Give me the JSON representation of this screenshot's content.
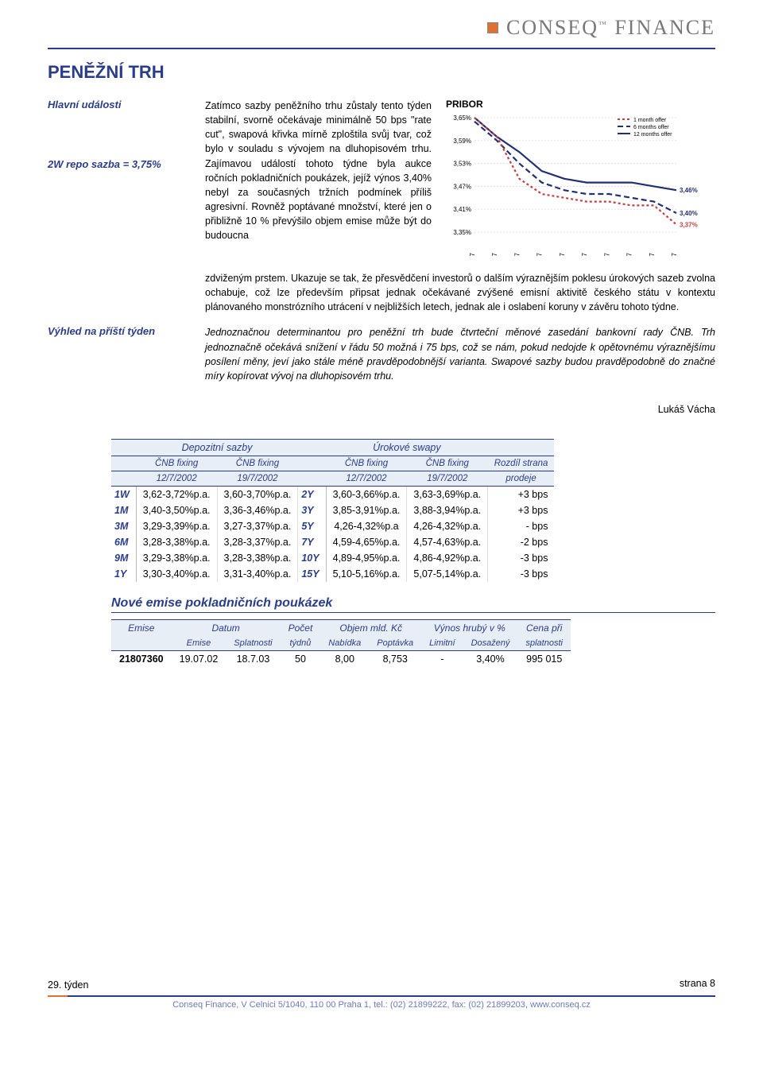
{
  "header": {
    "logo_text_1": "CONSEQ",
    "logo_tm": "™",
    "logo_text_2": "FINANCE"
  },
  "title": "PENĚŽNÍ TRH",
  "left": {
    "events_label": "Hlavní události",
    "repo_label": "2W repo sazba = 3,75%",
    "outlook_label": "Výhled na příští týden"
  },
  "paragraphs": {
    "p1": "Zatímco sazby peněžního trhu zůstaly tento týden stabilní, svorně očekávaje minimálně 50 bps \"rate cut\", swapová křivka mírně zploštila svůj tvar, což bylo v souladu s vývojem na dluhopisovém trhu. Zajímavou událostí tohoto týdne byla aukce ročních pokladničních poukázek, jejíž výnos 3,40% nebyl za současných tržních podmínek příliš agresivní. Rovněž poptávané množství, které jen o přibližně 10 % převýšilo objem emise může být do budoucna",
    "p2": "zdviženým prstem. Ukazuje se tak, že přesvědčení investorů o dalším výraznějším poklesu úrokových sazeb zvolna ochabuje, což lze především připsat jednak očekávané zvýšené emisní aktivitě českého státu v kontextu plánovaného monstrózního utrácení v nejbližších letech, jednak ale i oslabení koruny v závěru tohoto týdne.",
    "outlook": "Jednoznačnou determinantou pro peněžní trh bude čtvrteční měnové zasedání bankovní rady ČNB. Trh jednoznačně očekává snížení v řádu 50 možná i 75 bps, což se nám, pokud nedojde k opětovnému výraznějšímu posílení měny, jeví jako stále méně pravděpodobnější varianta. Swapové sazby budou pravděpodobně do značné míry kopírovat vývoj na dluhopisovém trhu.",
    "author": "Lukáš Vácha"
  },
  "chart": {
    "title": "PRIBOR",
    "type": "line",
    "x_labels": [
      "8.7",
      "9.7",
      "10.7",
      "11.7",
      "12.7",
      "15.7",
      "16.7",
      "17.7",
      "18.7",
      "19.7"
    ],
    "y_labels": [
      "3,35%",
      "3,41%",
      "3,47%",
      "3,53%",
      "3,59%",
      "3,65%"
    ],
    "ylim": [
      3.35,
      3.65
    ],
    "grid_color": "#d0d0d0",
    "background_color": "#ffffff",
    "legend": [
      {
        "label": "1 month offer",
        "color": "#c04040",
        "style": "dash-short"
      },
      {
        "label": "6 months offer",
        "color": "#203070",
        "style": "dash-long"
      },
      {
        "label": "12 months offer",
        "color": "#203070",
        "style": "solid"
      }
    ],
    "series": {
      "m1": [
        3.65,
        3.6,
        3.49,
        3.45,
        3.44,
        3.43,
        3.43,
        3.42,
        3.42,
        3.37
      ],
      "m6": [
        3.64,
        3.59,
        3.53,
        3.48,
        3.46,
        3.45,
        3.45,
        3.44,
        3.43,
        3.4
      ],
      "m12": [
        3.65,
        3.6,
        3.56,
        3.51,
        3.49,
        3.48,
        3.48,
        3.48,
        3.47,
        3.46
      ]
    },
    "end_labels": {
      "m1": "3,37%",
      "m6": "3,40%",
      "m12": "3,46%"
    },
    "colors": {
      "m1": "#c04040",
      "m6": "#203070",
      "m12": "#203070"
    },
    "line_width": 2.2
  },
  "rates_table": {
    "section1": "Depozitní sazby",
    "section2": "Úrokové swapy",
    "col_headers": [
      "ČNB fixing",
      "ČNB fixing",
      "",
      "ČNB fixing",
      "ČNB fixing",
      "Rozdíl strana"
    ],
    "col_dates": [
      "12/7/2002",
      "19/7/2002",
      "",
      "12/7/2002",
      "19/7/2002",
      "prodeje"
    ],
    "row_labels_left": [
      "1W",
      "1M",
      "3M",
      "6M",
      "9M",
      "1Y"
    ],
    "row_labels_right": [
      "2Y",
      "3Y",
      "5Y",
      "7Y",
      "10Y",
      "15Y"
    ],
    "rows": [
      [
        "3,62-3,72%p.a.",
        "3,60-3,70%p.a.",
        "3,60-3,66%p.a.",
        "3,63-3,69%p.a.",
        "+3 bps"
      ],
      [
        "3,40-3,50%p.a.",
        "3,36-3,46%p.a.",
        "3,85-3,91%p.a.",
        "3,88-3,94%p.a.",
        "+3 bps"
      ],
      [
        "3,29-3,39%p.a.",
        "3,27-3,37%p.a.",
        "4,26-4,32%p.a",
        "4,26-4,32%p.a.",
        "- bps"
      ],
      [
        "3,28-3,38%p.a.",
        "3,28-3,37%p.a.",
        "4,59-4,65%p.a.",
        "4,57-4,63%p.a.",
        "-2 bps"
      ],
      [
        "3,29-3,38%p.a.",
        "3,28-3,38%p.a.",
        "4,89-4,95%p.a.",
        "4,86-4,92%p.a.",
        "-3 bps"
      ],
      [
        "3,30-3,40%p.a.",
        "3,31-3,40%p.a.",
        "5,10-5,16%p.a.",
        "5,07-5,14%p.a.",
        "-3 bps"
      ]
    ]
  },
  "issues": {
    "heading": "Nové emise pokladničních poukázek",
    "top_headers": [
      "Emise",
      "Datum",
      "Počet",
      "Objem mld. Kč",
      "Výnos hrubý v %",
      "Cena při"
    ],
    "sub_headers": [
      "",
      "Emise",
      "Splatnosti",
      "týdnů",
      "Nabídka",
      "Poptávka",
      "Limitní",
      "Dosažený",
      "splatnosti"
    ],
    "row": [
      "21807360",
      "19.07.02",
      "18.7.03",
      "50",
      "8,00",
      "8,753",
      "-",
      "3,40%",
      "995 015"
    ]
  },
  "footer": {
    "week": "29. týden",
    "page": "strana 8",
    "addr": "Conseq Finance, V Celnici 5/1040, 110 00 Praha 1, tel.: (02) 21899222, fax: (02) 21899203, www.conseq.cz"
  }
}
